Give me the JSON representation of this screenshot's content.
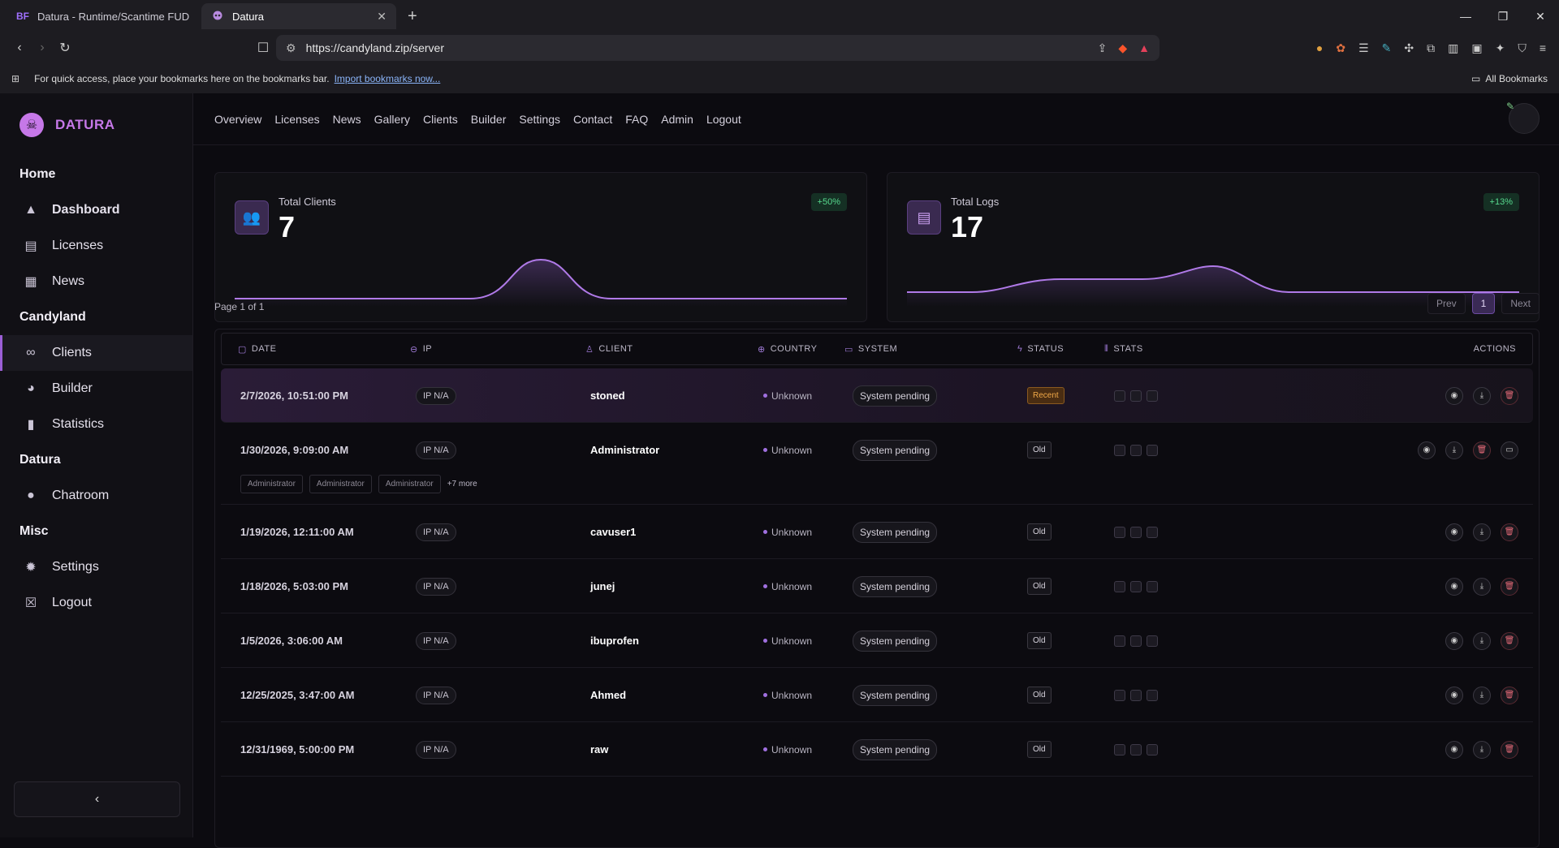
{
  "browser": {
    "tabs": [
      {
        "favicon": "BF",
        "label": "Datura - Runtime/Scantime FUD - W"
      },
      {
        "favicon": "skull",
        "label": "Datura"
      }
    ],
    "url": "https://candyland.zip/server",
    "bookmarks_hint": "For quick access, place your bookmarks here on the bookmarks bar.",
    "import_link": "Import bookmarks now...",
    "all_bookmarks": "All Bookmarks"
  },
  "brand": {
    "name": "DATURA"
  },
  "sidebar": {
    "groups": [
      {
        "title": "Home",
        "items": [
          {
            "label": "Dashboard",
            "icon": "chart-area-icon",
            "glyph": "▲",
            "active": false,
            "bold": true
          },
          {
            "label": "Licenses",
            "icon": "id-card-icon",
            "glyph": "▤",
            "active": false,
            "bold": false
          },
          {
            "label": "News",
            "icon": "newspaper-icon",
            "glyph": "▦",
            "active": false,
            "bold": false
          }
        ]
      },
      {
        "title": "Candyland",
        "items": [
          {
            "label": "Clients",
            "icon": "link-icon",
            "glyph": "∞",
            "active": true,
            "bold": false
          },
          {
            "label": "Builder",
            "icon": "palette-icon",
            "glyph": "◕",
            "active": false,
            "bold": false
          },
          {
            "label": "Statistics",
            "icon": "bar-chart-icon",
            "glyph": "▮",
            "active": false,
            "bold": false
          }
        ]
      },
      {
        "title": "Datura",
        "items": [
          {
            "label": "Chatroom",
            "icon": "chat-icon",
            "glyph": "●",
            "active": false,
            "bold": false
          }
        ]
      },
      {
        "title": "Misc",
        "items": [
          {
            "label": "Settings",
            "icon": "gear-icon",
            "glyph": "✹",
            "active": false,
            "bold": false
          },
          {
            "label": "Logout",
            "icon": "logout-icon",
            "glyph": "☒",
            "active": false,
            "bold": false
          }
        ]
      }
    ],
    "collapse_label": "‹"
  },
  "topnav": [
    "Overview",
    "Licenses",
    "News",
    "Gallery",
    "Clients",
    "Builder",
    "Settings",
    "Contact",
    "FAQ",
    "Admin",
    "Logout"
  ],
  "cards": [
    {
      "label": "Total Clients",
      "value": "7",
      "badge": "+50%",
      "icon": "users-icon"
    },
    {
      "label": "Total Logs",
      "value": "17",
      "badge": "+13%",
      "icon": "file-icon"
    }
  ],
  "pagination": {
    "info": "Page 1 of 1",
    "prev": "Prev",
    "current": "1",
    "next": "Next"
  },
  "table": {
    "columns": [
      "DATE",
      "IP",
      "CLIENT",
      "COUNTRY",
      "SYSTEM",
      "STATUS",
      "STATS",
      "ACTIONS"
    ],
    "rows": [
      {
        "date": "2/7/2026, 10:51:00 PM",
        "ip": "IP N/A",
        "client": "stoned",
        "country": "Unknown",
        "system": "System pending",
        "status": "Recent"
      },
      {
        "date": "1/30/2026, 9:09:00 AM",
        "ip": "IP N/A",
        "client": "Administrator",
        "country": "Unknown",
        "system": "System pending",
        "status": "Old",
        "tags": [
          "Administrator",
          "Administrator",
          "Administrator"
        ],
        "more": "+7 more"
      },
      {
        "date": "1/19/2026, 12:11:00 AM",
        "ip": "IP N/A",
        "client": "cavuser1",
        "country": "Unknown",
        "system": "System pending",
        "status": "Old"
      },
      {
        "date": "1/18/2026, 5:03:00 PM",
        "ip": "IP N/A",
        "client": "junej",
        "country": "Unknown",
        "system": "System pending",
        "status": "Old"
      },
      {
        "date": "1/5/2026, 3:06:00 AM",
        "ip": "IP N/A",
        "client": "ibuprofen",
        "country": "Unknown",
        "system": "System pending",
        "status": "Old"
      },
      {
        "date": "12/25/2025, 3:47:00 AM",
        "ip": "IP N/A",
        "client": "Ahmed",
        "country": "Unknown",
        "system": "System pending",
        "status": "Old"
      },
      {
        "date": "12/31/1969, 5:00:00 PM",
        "ip": "IP N/A",
        "client": "raw",
        "country": "Unknown",
        "system": "System pending",
        "status": "Old"
      }
    ]
  },
  "colors": {
    "accent": "#c678e8",
    "success": "#57d98e",
    "recent": "#f0a848",
    "danger": "#e56a78"
  }
}
